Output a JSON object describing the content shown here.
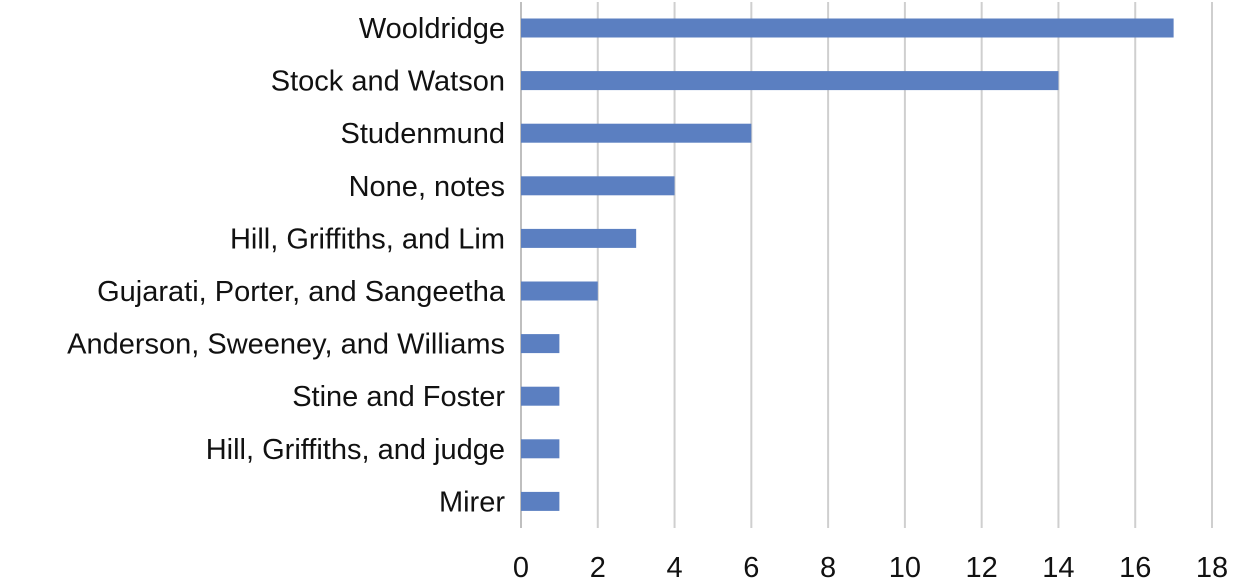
{
  "chart_data": {
    "type": "bar",
    "orientation": "horizontal",
    "categories": [
      "Wooldridge",
      "Stock and Watson",
      "Studenmund",
      "None, notes",
      "Hill, Griffiths, and Lim",
      "Gujarati, Porter, and Sangeetha",
      "Anderson, Sweeney, and Williams",
      "Stine and Foster",
      "Hill, Griffiths, and judge",
      "Mirer"
    ],
    "values": [
      17,
      14,
      6,
      4,
      3,
      2,
      1,
      1,
      1,
      1
    ],
    "xlim": [
      0,
      18
    ],
    "xticks": [
      0,
      2,
      4,
      6,
      8,
      10,
      12,
      14,
      16,
      18
    ],
    "grid": "vertical",
    "legend": "none",
    "bar_color": "#5b7fc1",
    "grid_color": "#cfcfcf"
  }
}
